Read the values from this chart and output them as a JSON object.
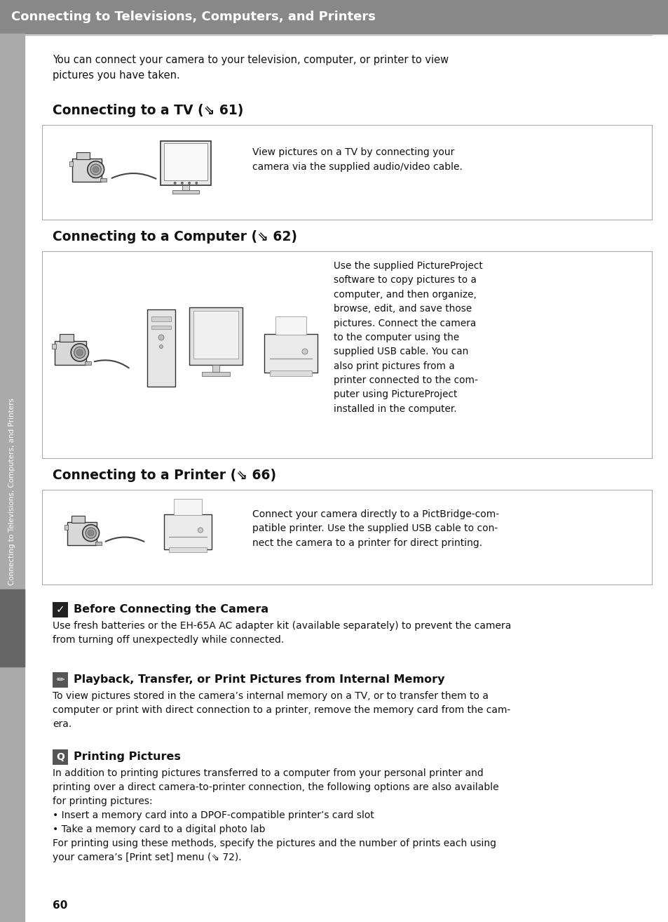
{
  "header_bg_color": "#888888",
  "header_text": "Connecting to Televisions, Computers, and Printers",
  "header_text_color": "#ffffff",
  "page_bg_color": "#f5f5f5",
  "body_bg_color": "#ffffff",
  "sidebar_bg_color": "#aaaaaa",
  "sidebar_text": "Connecting to Televisions, Computers, and Printers",
  "sidebar_text_color": "#ffffff",
  "body_text_color": "#111111",
  "intro_text": "You can connect your camera to your television, computer, or printer to view\npictures you have taken.",
  "section1_title": "Connecting to a TV (⇘ 61)",
  "section1_box_text": "View pictures on a TV by connecting your\ncamera via the supplied audio/video cable.",
  "section2_title": "Connecting to a Computer (⇘ 62)",
  "section2_box_text": "Use the supplied PictureProject\nsoftware to copy pictures to a\ncomputer, and then organize,\nbrowse, edit, and save those\npictures. Connect the camera\nto the computer using the\nsupplied USB cable. You can\nalso print pictures from a\nprinter connected to the com-\nputer using PictureProject\ninstalled in the computer.",
  "section3_title": "Connecting to a Printer (⇘ 66)",
  "section3_box_text": "Connect your camera directly to a PictBridge-com-\npatible printer. Use the supplied USB cable to con-\nnect the camera to a printer for direct printing.",
  "note1_title": "Before Connecting the Camera",
  "note1_text": "Use fresh batteries or the EH-65A AC adapter kit (available separately) to prevent the camera\nfrom turning off unexpectedly while connected.",
  "note2_title": "Playback, Transfer, or Print Pictures from Internal Memory",
  "note2_text": "To view pictures stored in the camera’s internal memory on a TV, or to transfer them to a\ncomputer or print with direct connection to a printer, remove the memory card from the cam-\nera.",
  "note3_title": "Printing Pictures",
  "note3_text": "In addition to printing pictures transferred to a computer from your personal printer and\nprinting over a direct camera-to-printer connection, the following options are also available\nfor printing pictures:\n• Insert a memory card into a DPOF-compatible printer’s card slot\n• Take a memory card to a digital photo lab\nFor printing using these methods, specify the pictures and the number of prints each using\nyour camera’s [Print set] menu (⇘ 72).",
  "page_number": "60"
}
